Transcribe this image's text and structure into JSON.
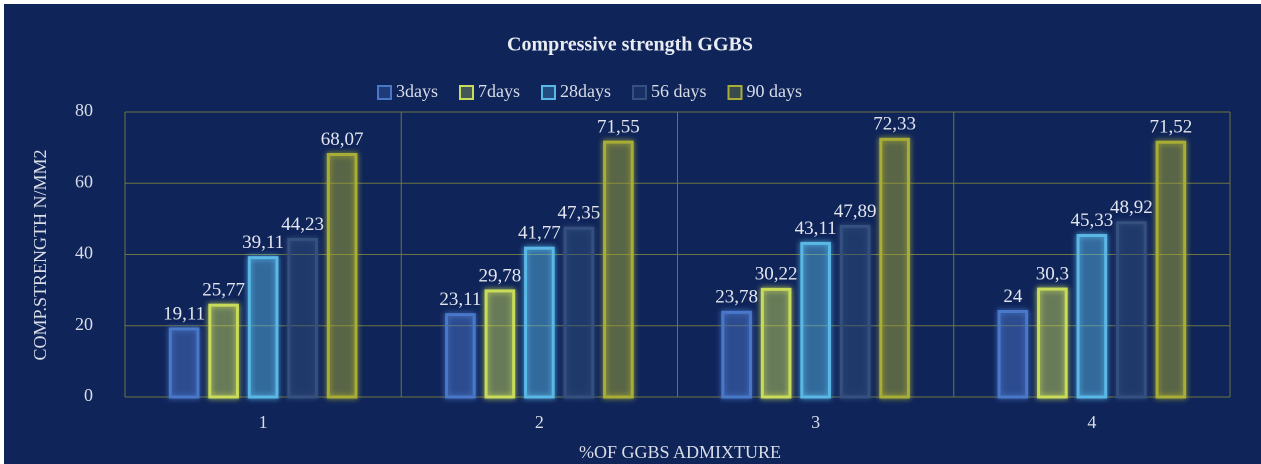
{
  "chart_data": {
    "type": "bar",
    "title": "Compressive strength GGBS",
    "x_label": "%OF GGBS ADMIXTURE",
    "y_label": "COMP.STRENGTH N/MM2",
    "categories": [
      "1",
      "2",
      "3",
      "4"
    ],
    "series": [
      {
        "name": "3days",
        "color": "#4a78c8",
        "values": [
          19.11,
          23.11,
          23.78,
          24
        ],
        "value_labels": [
          "19,11",
          "23,11",
          "23,78",
          "24"
        ]
      },
      {
        "name": "7days",
        "color": "#c8dc5a",
        "values": [
          25.77,
          29.78,
          30.22,
          30.3
        ],
        "value_labels": [
          "25,77",
          "29,78",
          "30,22",
          "30,3"
        ]
      },
      {
        "name": "28days",
        "color": "#5ab8e6",
        "values": [
          39.11,
          41.77,
          43.11,
          45.33
        ],
        "value_labels": [
          "39,11",
          "41,77",
          "43,11",
          "45,33"
        ]
      },
      {
        "name": "56 days",
        "color": "#34507e",
        "values": [
          44.23,
          47.35,
          47.89,
          48.92
        ],
        "value_labels": [
          "44,23",
          "47,35",
          "47,89",
          "48,92"
        ]
      },
      {
        "name": "90 days",
        "color": "#a8ae34",
        "values": [
          68.07,
          71.55,
          72.33,
          71.52
        ],
        "value_labels": [
          "68,07",
          "71,55",
          "72,33",
          "71,52"
        ]
      }
    ],
    "ylim": [
      0,
      80
    ],
    "yticks": [
      0,
      20,
      40,
      60,
      80
    ],
    "grid": true,
    "legend": "top"
  }
}
